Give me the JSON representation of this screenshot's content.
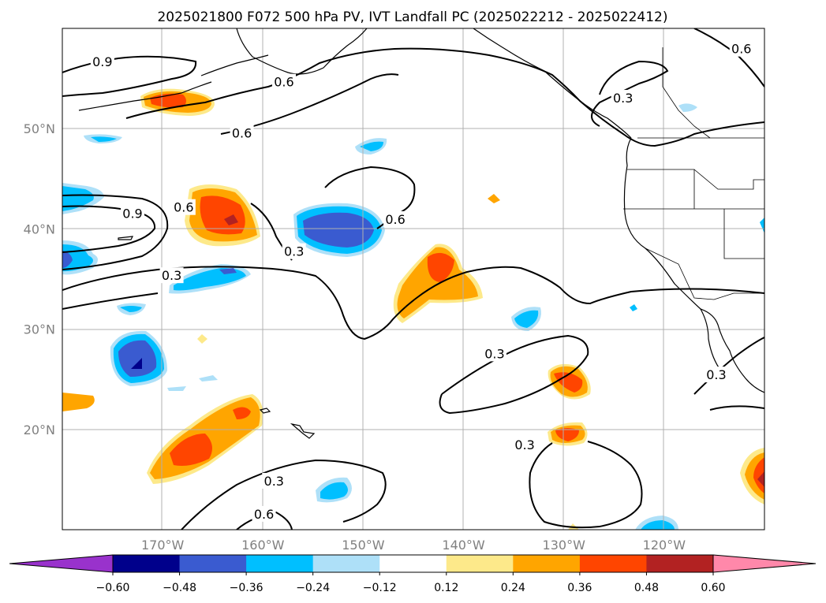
{
  "title": "2025021800 F072 500 hPa PV, IVT Landfall PC (2025022212 - 2025022412)",
  "map": {
    "lon_range": [
      -180,
      -110
    ],
    "lat_range": [
      10,
      60
    ],
    "lon_ticks": [
      {
        "value": -170,
        "label": "170°W"
      },
      {
        "value": -160,
        "label": "160°W"
      },
      {
        "value": -150,
        "label": "150°W"
      },
      {
        "value": -140,
        "label": "140°W"
      },
      {
        "value": -130,
        "label": "130°W"
      },
      {
        "value": -120,
        "label": "120°W"
      }
    ],
    "lat_ticks": [
      {
        "value": 20,
        "label": "20°N"
      },
      {
        "value": 30,
        "label": "30°N"
      },
      {
        "value": 40,
        "label": "40°N"
      },
      {
        "value": 50,
        "label": "50°N"
      }
    ],
    "grid": true
  },
  "colorbar": {
    "orientation": "horizontal",
    "extend": "both",
    "levels": [
      -0.6,
      -0.48,
      -0.36,
      -0.24,
      -0.12,
      0.12,
      0.24,
      0.36,
      0.48,
      0.6
    ],
    "tick_labels": [
      "−0.60",
      "−0.48",
      "−0.36",
      "−0.24",
      "−0.12",
      "0.12",
      "0.24",
      "0.36",
      "0.48",
      "0.60"
    ],
    "colors": {
      "under": "#9932cc",
      "bins": [
        "#00008b",
        "#3a5bd0",
        "#00bfff",
        "#aee0f8",
        "#ffffff",
        "#fde98a",
        "#ffa500",
        "#ff4500",
        "#b22222"
      ],
      "over": "#ff88aa"
    }
  },
  "contour_labels": [
    {
      "text": "0.9",
      "lon": -176.0,
      "lat": 56.6
    },
    {
      "text": "0.6",
      "lon": -157.9,
      "lat": 54.6
    },
    {
      "text": "0.6",
      "lon": -162.1,
      "lat": 49.5
    },
    {
      "text": "0.6",
      "lon": -112.3,
      "lat": 57.9
    },
    {
      "text": "0.3",
      "lon": -124.1,
      "lat": 53.0
    },
    {
      "text": "0.9",
      "lon": -173.0,
      "lat": 41.5
    },
    {
      "text": "0.6",
      "lon": -167.9,
      "lat": 42.1
    },
    {
      "text": "0.6",
      "lon": -146.8,
      "lat": 40.9
    },
    {
      "text": "0.3",
      "lon": -156.9,
      "lat": 37.7
    },
    {
      "text": "0.3",
      "lon": -169.1,
      "lat": 35.3
    },
    {
      "text": "0.3",
      "lon": -136.9,
      "lat": 27.5
    },
    {
      "text": "0.3",
      "lon": -133.9,
      "lat": 18.4
    },
    {
      "text": "0.3",
      "lon": -114.8,
      "lat": 25.4
    },
    {
      "text": "0.3",
      "lon": -158.9,
      "lat": 14.8
    },
    {
      "text": "0.6",
      "lon": -159.9,
      "lat": 11.5
    }
  ]
}
